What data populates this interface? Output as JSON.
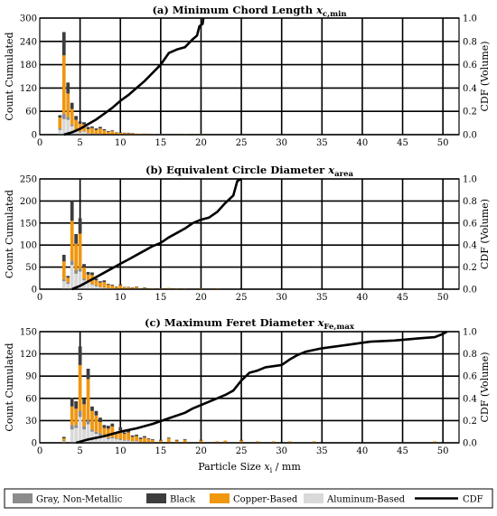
{
  "legend": {
    "items": [
      {
        "key": "gray",
        "label": "Gray, Non-Metallic",
        "color": "#8c8c8c",
        "kind": "box"
      },
      {
        "key": "black",
        "label": "Black",
        "color": "#3d3d3d",
        "kind": "box"
      },
      {
        "key": "copper",
        "label": "Copper-Based",
        "color": "#f0960f",
        "kind": "box"
      },
      {
        "key": "aluminum",
        "label": "Aluminum-Based",
        "color": "#d9d9d9",
        "kind": "box"
      },
      {
        "key": "cdf",
        "label": "CDF",
        "color": "#000000",
        "kind": "line"
      }
    ]
  },
  "shared": {
    "xlabel_main": "Particle Size ",
    "xlabel_var": "x",
    "xlabel_sub": "i",
    "xlabel_unit": " / mm",
    "ylabel_left": "Count Cumulated",
    "ylabel_right": "CDF (Volume)"
  },
  "chart_data": [
    {
      "type": "bar",
      "stacked": true,
      "title_prefix": "(a) Minimum Chord Length ",
      "title_var": "x",
      "title_sub": "c,min",
      "xlim": [
        0,
        52
      ],
      "xticks": [
        0,
        5,
        10,
        15,
        20,
        25,
        30,
        35,
        40,
        45,
        50
      ],
      "ylim": [
        0,
        300
      ],
      "yticks": [
        0,
        60,
        120,
        180,
        240,
        300
      ],
      "y2lim": [
        0,
        1
      ],
      "y2ticks": [
        0,
        0.2,
        0.4,
        0.6,
        0.8,
        1.0
      ],
      "y2ticklabels": [
        "0.0",
        "0.2",
        "0.4",
        "0.6",
        "0.8",
        "1.0"
      ],
      "grid": true,
      "x": [
        2.5,
        3.0,
        3.5,
        4.0,
        4.5,
        5.0,
        5.5,
        6.0,
        6.5,
        7.0,
        7.5,
        8.0,
        8.5,
        9.0,
        9.5,
        10.0,
        10.5,
        11.0,
        11.5,
        12.0,
        12.5,
        13.0,
        14.0,
        15.0,
        18.0,
        20.0
      ],
      "series": [
        {
          "name": "Aluminum-Based",
          "key": "aluminum",
          "values": [
            12,
            40,
            38,
            22,
            8,
            6,
            8,
            3,
            2,
            2,
            2,
            1,
            1,
            1,
            1,
            0,
            0,
            0,
            0,
            0,
            0,
            0,
            0,
            0,
            0,
            0
          ]
        },
        {
          "name": "Gray, Non-Metallic",
          "key": "gray",
          "values": [
            4,
            14,
            8,
            4,
            2,
            2,
            2,
            1,
            1,
            0,
            0,
            0,
            0,
            0,
            0,
            0,
            0,
            0,
            0,
            0,
            0,
            0,
            0,
            0,
            0,
            0
          ]
        },
        {
          "name": "Copper-Based",
          "key": "copper",
          "values": [
            28,
            150,
            60,
            40,
            28,
            20,
            16,
            10,
            14,
            10,
            14,
            10,
            6,
            8,
            4,
            5,
            4,
            4,
            3,
            3,
            2,
            3,
            2,
            2,
            2,
            2
          ]
        },
        {
          "name": "Black",
          "key": "black",
          "values": [
            6,
            60,
            28,
            16,
            10,
            6,
            6,
            6,
            4,
            4,
            4,
            3,
            2,
            2,
            1,
            1,
            1,
            1,
            1,
            0,
            0,
            0,
            0,
            0,
            0,
            0
          ]
        }
      ],
      "cdf": {
        "x": [
          3.0,
          4.0,
          5.0,
          6.0,
          7.0,
          8.0,
          9.0,
          10.0,
          11.0,
          12.0,
          13.0,
          14.0,
          15.0,
          16.0,
          17.0,
          18.0,
          19.0,
          19.5,
          19.8,
          20.2,
          20.3
        ],
        "y": [
          0.0,
          0.02,
          0.05,
          0.09,
          0.13,
          0.18,
          0.23,
          0.29,
          0.34,
          0.4,
          0.46,
          0.53,
          0.6,
          0.7,
          0.73,
          0.75,
          0.82,
          0.85,
          0.93,
          0.95,
          1.0
        ]
      }
    },
    {
      "type": "bar",
      "stacked": true,
      "title_prefix": "(b) Equivalent Circle Diameter ",
      "title_var": "x",
      "title_sub": "area",
      "xlim": [
        0,
        52
      ],
      "xticks": [
        0,
        5,
        10,
        15,
        20,
        25,
        30,
        35,
        40,
        45,
        50
      ],
      "ylim": [
        0,
        250
      ],
      "yticks": [
        0,
        50,
        100,
        150,
        200,
        250
      ],
      "y2lim": [
        0,
        1
      ],
      "y2ticks": [
        0,
        0.2,
        0.4,
        0.6,
        0.8,
        1.0
      ],
      "y2ticklabels": [
        "0.0",
        "0.2",
        "0.4",
        "0.6",
        "0.8",
        "1.0"
      ],
      "grid": true,
      "x": [
        3.0,
        3.5,
        4.0,
        4.5,
        5.0,
        5.5,
        6.0,
        6.5,
        7.0,
        7.5,
        8.0,
        8.5,
        9.0,
        9.5,
        10.0,
        10.5,
        11.0,
        11.5,
        12.0,
        13.0,
        14.0,
        15.0,
        16.0,
        17.0,
        18.0,
        20.0,
        22.0
      ],
      "series": [
        {
          "name": "Aluminum-Based",
          "key": "aluminum",
          "values": [
            18,
            12,
            55,
            35,
            40,
            20,
            15,
            10,
            6,
            4,
            3,
            2,
            2,
            1,
            1,
            1,
            0,
            0,
            0,
            0,
            0,
            0,
            0,
            0,
            0,
            0,
            0
          ]
        },
        {
          "name": "Gray, Non-Metallic",
          "key": "gray",
          "values": [
            5,
            4,
            10,
            8,
            6,
            4,
            3,
            2,
            2,
            1,
            1,
            0,
            0,
            0,
            0,
            0,
            0,
            0,
            0,
            0,
            0,
            0,
            0,
            0,
            0,
            0,
            0
          ]
        },
        {
          "name": "Copper-Based",
          "key": "copper",
          "values": [
            40,
            10,
            90,
            60,
            80,
            25,
            15,
            20,
            12,
            10,
            12,
            8,
            6,
            4,
            8,
            3,
            4,
            3,
            5,
            3,
            2,
            2,
            3,
            2,
            2,
            2,
            2
          ]
        },
        {
          "name": "Black",
          "key": "black",
          "values": [
            15,
            4,
            45,
            22,
            35,
            8,
            6,
            6,
            4,
            3,
            4,
            2,
            2,
            1,
            2,
            1,
            1,
            1,
            1,
            1,
            0,
            0,
            0,
            0,
            0,
            0,
            0
          ]
        }
      ],
      "cdf": {
        "x": [
          4.0,
          5.0,
          6.0,
          7.0,
          8.0,
          9.0,
          10.0,
          11.0,
          12.0,
          13.0,
          14.0,
          15.0,
          16.0,
          17.0,
          18.0,
          19.0,
          20.0,
          21.0,
          22.0,
          23.0,
          24.0,
          24.5,
          25.0
        ],
        "y": [
          0.0,
          0.03,
          0.07,
          0.11,
          0.15,
          0.19,
          0.23,
          0.27,
          0.31,
          0.35,
          0.39,
          0.42,
          0.47,
          0.51,
          0.55,
          0.6,
          0.63,
          0.65,
          0.7,
          0.78,
          0.85,
          0.98,
          1.0
        ]
      }
    },
    {
      "type": "bar",
      "stacked": true,
      "title_prefix": "(c) Maximum Feret Diameter ",
      "title_var": "x",
      "title_sub": "Fe,max",
      "xlim": [
        0,
        52
      ],
      "xticks": [
        0,
        5,
        10,
        15,
        20,
        25,
        30,
        35,
        40,
        45,
        50
      ],
      "ylim": [
        0,
        150
      ],
      "yticks": [
        0,
        30,
        60,
        90,
        120,
        150
      ],
      "y2lim": [
        0,
        1
      ],
      "y2ticks": [
        0,
        0.2,
        0.4,
        0.6,
        0.8,
        1.0
      ],
      "y2ticklabels": [
        "0.0",
        "0.2",
        "0.4",
        "0.6",
        "0.8",
        "1.0"
      ],
      "grid": true,
      "x": [
        3.0,
        4.0,
        4.5,
        5.0,
        5.5,
        6.0,
        6.5,
        7.0,
        7.5,
        8.0,
        8.5,
        9.0,
        9.5,
        10.0,
        10.5,
        11.0,
        11.5,
        12.0,
        12.5,
        13.0,
        13.5,
        14.0,
        15.0,
        16.0,
        17.0,
        18.0,
        20.0,
        22.0,
        23.0,
        25.0,
        27.0,
        29.0,
        31.0,
        34.0,
        49.0
      ],
      "series": [
        {
          "name": "Aluminum-Based",
          "key": "aluminum",
          "values": [
            2,
            18,
            20,
            35,
            18,
            25,
            15,
            12,
            10,
            8,
            5,
            6,
            5,
            4,
            3,
            3,
            2,
            2,
            1,
            1,
            1,
            1,
            0,
            0,
            0,
            0,
            0,
            0,
            0,
            0,
            0,
            0,
            0,
            0,
            0
          ]
        },
        {
          "name": "Gray, Non-Metallic",
          "key": "gray",
          "values": [
            1,
            6,
            4,
            8,
            4,
            6,
            3,
            3,
            3,
            2,
            2,
            2,
            1,
            1,
            1,
            1,
            0,
            1,
            0,
            0,
            0,
            0,
            0,
            0,
            0,
            0,
            0,
            0,
            0,
            0,
            0,
            0,
            0,
            0,
            0
          ]
        },
        {
          "name": "Copper-Based",
          "key": "copper",
          "values": [
            3,
            25,
            22,
            62,
            30,
            55,
            25,
            22,
            15,
            10,
            12,
            14,
            6,
            12,
            8,
            10,
            6,
            6,
            4,
            6,
            4,
            3,
            3,
            6,
            3,
            4,
            3,
            2,
            3,
            3,
            2,
            2,
            2,
            2,
            2
          ]
        },
        {
          "name": "Black",
          "key": "black",
          "values": [
            2,
            12,
            10,
            25,
            8,
            14,
            6,
            6,
            6,
            4,
            4,
            4,
            2,
            4,
            2,
            3,
            2,
            2,
            2,
            2,
            1,
            1,
            1,
            1,
            1,
            1,
            1,
            0,
            0,
            1,
            0,
            0,
            0,
            0,
            0
          ]
        }
      ],
      "cdf": {
        "x": [
          4.5,
          6.0,
          8.0,
          10.0,
          12.0,
          14.0,
          16.0,
          18.0,
          19.0,
          20.0,
          22.0,
          23.0,
          24.0,
          25.0,
          26.0,
          27.0,
          28.0,
          30.0,
          31.0,
          32.0,
          33.0,
          35.0,
          38.0,
          41.0,
          44.0,
          47.0,
          49.0,
          50.0,
          50.5
        ],
        "y": [
          0.0,
          0.03,
          0.06,
          0.1,
          0.13,
          0.17,
          0.22,
          0.27,
          0.31,
          0.34,
          0.4,
          0.43,
          0.47,
          0.56,
          0.63,
          0.65,
          0.68,
          0.7,
          0.75,
          0.79,
          0.82,
          0.85,
          0.88,
          0.91,
          0.92,
          0.94,
          0.95,
          0.98,
          1.0
        ]
      }
    }
  ]
}
